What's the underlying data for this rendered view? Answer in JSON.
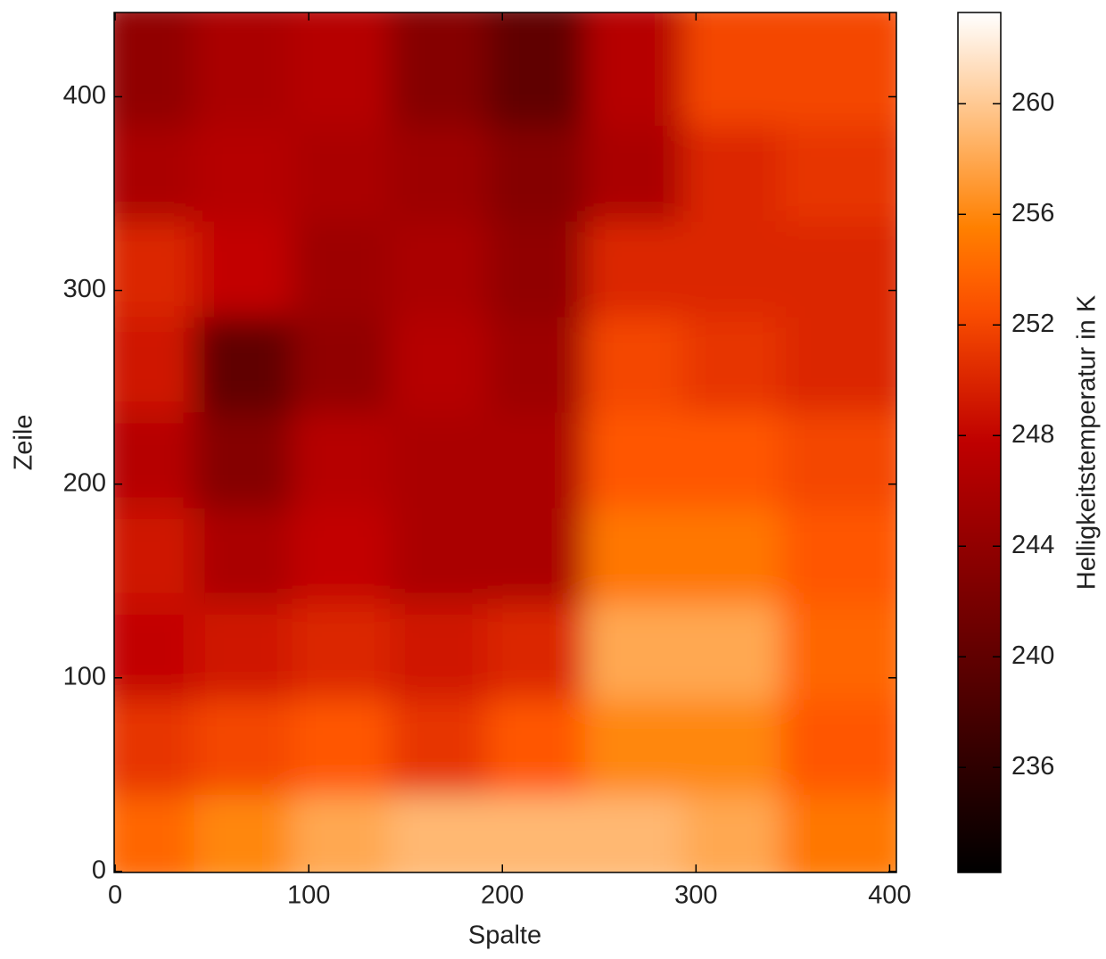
{
  "chart_data": {
    "type": "heatmap",
    "xlabel": "Spalte",
    "ylabel": "Zeile",
    "colorbar_label": "Helligkeitstemperatur in K",
    "colormap": "gist_heat",
    "xlim": [
      -0.5,
      403.5
    ],
    "ylim": [
      -0.5,
      443.5
    ],
    "xticks": [
      0,
      100,
      200,
      300,
      400
    ],
    "yticks": [
      0,
      100,
      200,
      300,
      400
    ],
    "clim": [
      232.2,
      263.3
    ],
    "cticks": [
      236,
      240,
      244,
      248,
      252,
      256,
      260
    ],
    "z": [
      [
        254,
        256,
        258,
        259,
        259,
        259,
        258,
        255
      ],
      [
        251,
        252,
        253,
        251,
        253,
        256,
        256,
        253
      ],
      [
        248,
        249,
        250,
        249,
        250,
        258,
        258,
        254
      ],
      [
        249,
        246,
        248,
        246,
        246,
        255,
        255,
        253
      ],
      [
        247,
        243,
        247,
        246,
        246,
        253,
        253,
        252
      ],
      [
        249,
        240,
        244,
        247,
        245,
        252,
        251,
        250
      ],
      [
        250,
        248,
        245,
        246,
        244,
        250,
        250,
        250
      ],
      [
        246,
        247,
        246,
        245,
        243,
        246,
        250,
        251
      ],
      [
        244,
        246,
        247,
        243,
        240,
        247,
        252,
        252
      ]
    ]
  }
}
